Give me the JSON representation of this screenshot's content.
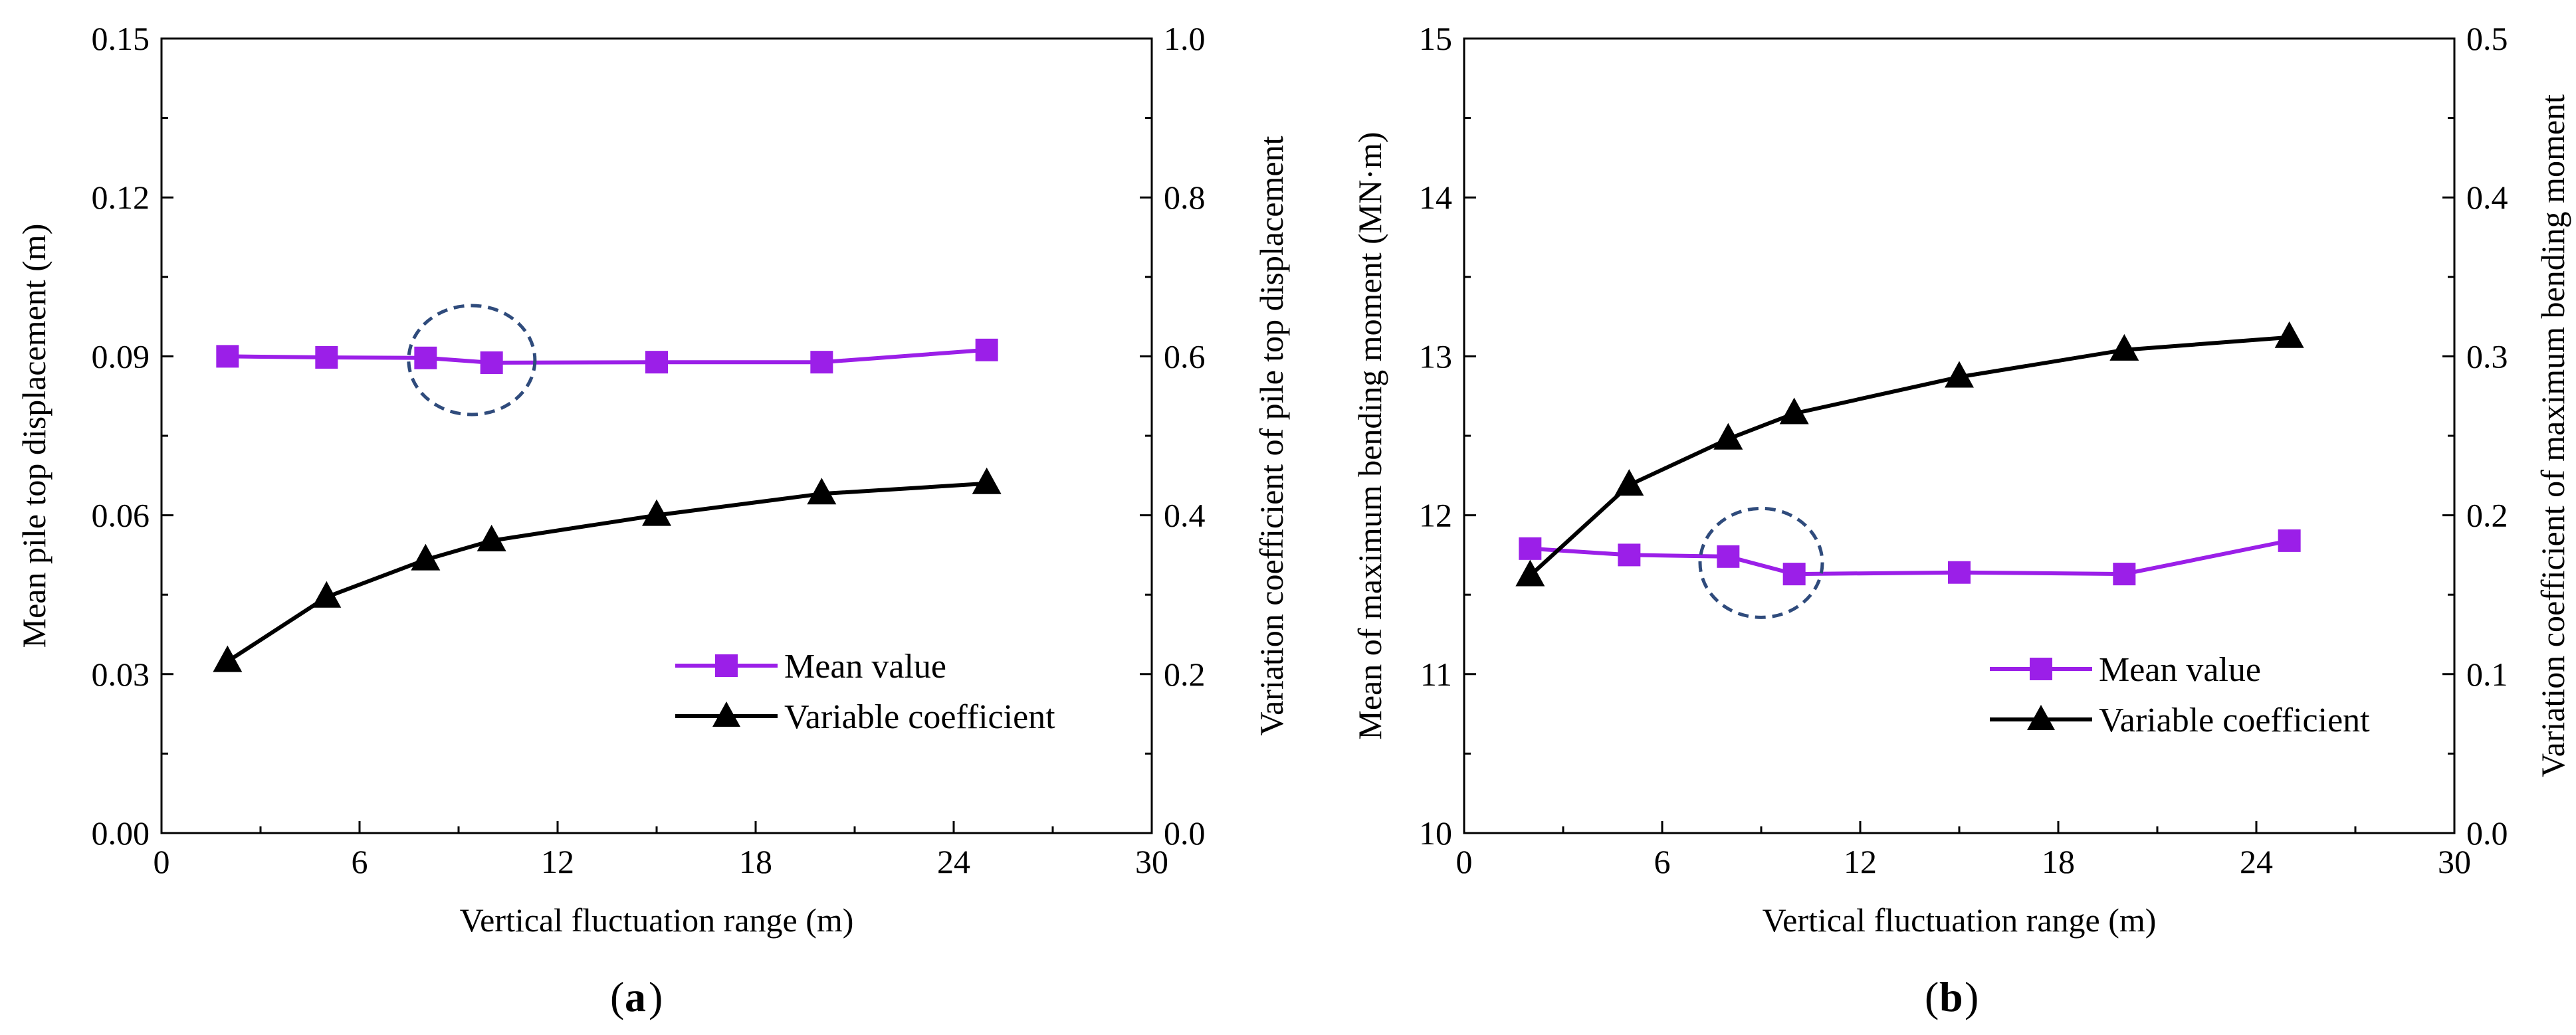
{
  "chart_data": [
    {
      "type": "line",
      "panel_label": "a",
      "xlabel": "Vertical fluctuation range (m)",
      "ylabel_left": "Mean pile top displacement (m)",
      "ylabel_right": "Variation coefficient of pile top displacement",
      "xlim": [
        0,
        30
      ],
      "ylim_left": [
        0,
        0.15
      ],
      "ylim_right": [
        0,
        1.0
      ],
      "xticks": [
        "0",
        "6",
        "12",
        "18",
        "24",
        "30"
      ],
      "yticks_left": [
        "0.00",
        "0.03",
        "0.06",
        "0.09",
        "0.12",
        "0.15"
      ],
      "yticks_right": [
        "0.0",
        "0.2",
        "0.4",
        "0.6",
        "0.8",
        "1.0"
      ],
      "x": [
        2,
        5,
        8,
        10,
        15,
        20,
        25
      ],
      "series": [
        {
          "name": "Mean value",
          "axis": "left",
          "marker": "square",
          "color": "#9b1fe8",
          "values": [
            0.09,
            0.0898,
            0.0897,
            0.0888,
            0.0889,
            0.0889,
            0.0912
          ]
        },
        {
          "name": "Variable coefficient",
          "axis": "right",
          "marker": "triangle",
          "color": "#000000",
          "values": [
            0.216,
            0.297,
            0.344,
            0.368,
            0.4,
            0.427,
            0.44
          ]
        }
      ],
      "annotation": {
        "type": "dashed-ellipse",
        "color": "#2f4b7c",
        "center_x": 9.4,
        "center_y_left": 0.0893
      },
      "legend_position": "lower-right"
    },
    {
      "type": "line",
      "panel_label": "b",
      "xlabel": "Vertical fluctuation range (m)",
      "ylabel_left": "Mean of maximum bending moment (MN·m)",
      "ylabel_right": "Variation coefficient of maximum bending moment",
      "xlim": [
        0,
        30
      ],
      "ylim_left": [
        10,
        15
      ],
      "ylim_right": [
        0,
        0.5
      ],
      "xticks": [
        "0",
        "6",
        "12",
        "18",
        "24",
        "30"
      ],
      "yticks_left": [
        "10",
        "11",
        "12",
        "13",
        "14",
        "15"
      ],
      "yticks_right": [
        "0.0",
        "0.1",
        "0.2",
        "0.3",
        "0.4",
        "0.5"
      ],
      "x": [
        2,
        5,
        8,
        10,
        15,
        20,
        25
      ],
      "series": [
        {
          "name": "Mean value",
          "axis": "left",
          "marker": "square",
          "color": "#9b1fe8",
          "values": [
            11.79,
            11.75,
            11.74,
            11.63,
            11.64,
            11.63,
            11.84
          ]
        },
        {
          "name": "Variable coefficient",
          "axis": "right",
          "marker": "triangle",
          "color": "#000000",
          "values": [
            0.162,
            0.219,
            0.248,
            0.264,
            0.287,
            0.304,
            0.312
          ]
        }
      ],
      "annotation": {
        "type": "dashed-ellipse",
        "color": "#2f4b7c",
        "center_x": 9.0,
        "center_y_left": 11.7
      },
      "legend_position": "lower-right"
    }
  ]
}
